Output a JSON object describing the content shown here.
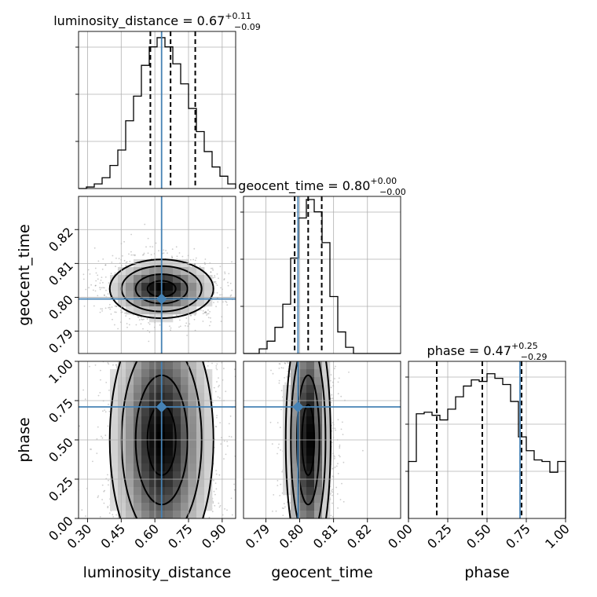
{
  "chart_data": {
    "type": "corner",
    "parameters": [
      "luminosity_distance",
      "geocent_time",
      "phase"
    ],
    "truth": {
      "luminosity_distance": 0.63,
      "geocent_time": 0.7995,
      "phase": 0.71
    },
    "ranges": {
      "luminosity_distance": [
        0.26,
        0.96
      ],
      "geocent_time": [
        0.7834,
        0.8298
      ],
      "phase": [
        0.0,
        1.0
      ]
    },
    "ticks": {
      "luminosity_distance": {
        "values": [
          0.3,
          0.45,
          0.6,
          0.75,
          0.9
        ],
        "labels": [
          "0.30",
          "0.45",
          "0.60",
          "0.75",
          "0.90"
        ]
      },
      "geocent_time": {
        "values": [
          0.79,
          0.8,
          0.81,
          0.82
        ],
        "labels": [
          "0.79",
          "0.80",
          "0.81",
          "0.82"
        ]
      },
      "phase": {
        "values": [
          0.0,
          0.25,
          0.5,
          0.75,
          1.0
        ],
        "labels": [
          "0.00",
          "0.25",
          "0.50",
          "0.75",
          "1.00"
        ]
      }
    },
    "titles": [
      {
        "name": "luminosity_distance = 0.67",
        "sup": "+0.11",
        "sub": "−0.09"
      },
      {
        "name": "geocent_time = 0.80",
        "sup": "+0.00",
        "sub": "−0.00"
      },
      {
        "name": "phase = 0.47",
        "sup": "+0.25",
        "sub": "−0.29"
      }
    ],
    "axis_labels": {
      "x": [
        "luminosity_distance",
        "geocent_time",
        "phase"
      ],
      "y": [
        "geocent_time",
        "phase"
      ]
    },
    "quantiles": {
      "luminosity_distance": [
        0.58,
        0.67,
        0.78
      ],
      "geocent_time": [
        0.7985,
        0.8025,
        0.8065
      ],
      "phase": [
        0.18,
        0.47,
        0.72
      ]
    },
    "histograms": {
      "luminosity_distance": {
        "bins": [
          0.26,
          0.96
        ],
        "counts": [
          0,
          1,
          3,
          7,
          15,
          25,
          44,
          60,
          80,
          92,
          98,
          92,
          81,
          68,
          52,
          37,
          24,
          14,
          8,
          3
        ]
      },
      "geocent_time": {
        "bins": [
          0.7834,
          0.8298
        ],
        "counts": [
          0,
          0,
          3,
          8,
          17,
          32,
          62,
          88,
          100,
          92,
          72,
          37,
          14,
          4,
          0,
          0,
          0,
          0,
          0,
          0
        ]
      },
      "phase": {
        "bins": [
          0.0,
          1.0
        ],
        "counts": [
          37,
          68,
          69,
          67,
          64,
          71,
          79,
          86,
          90,
          89,
          94,
          91,
          87,
          76,
          53,
          44,
          38,
          37,
          30,
          37
        ]
      }
    },
    "grid": true
  }
}
